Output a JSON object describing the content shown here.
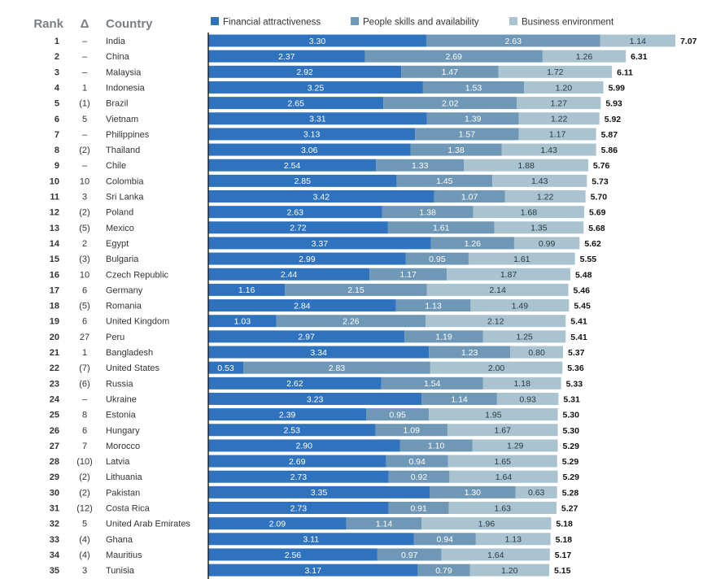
{
  "header": {
    "rank": "Rank",
    "delta": "Δ",
    "country": "Country"
  },
  "colors": {
    "financial": "#2f73bf",
    "people": "#6f97b6",
    "business": "#a9c3d1",
    "axis": "#222222",
    "header_text": "#7a7f86"
  },
  "chart_data": {
    "type": "bar",
    "orientation": "horizontal",
    "stacked": true,
    "legend_position": "top",
    "grid": false,
    "series": [
      {
        "name": "Financial attractiveness",
        "values": [
          3.3,
          2.37,
          2.92,
          3.25,
          2.65,
          3.31,
          3.13,
          3.06,
          2.54,
          2.85,
          3.42,
          2.63,
          2.72,
          3.37,
          2.99,
          2.44,
          1.16,
          2.84,
          1.03,
          2.97,
          3.34,
          0.53,
          2.62,
          3.23,
          2.39,
          2.53,
          2.9,
          2.69,
          2.73,
          3.35,
          2.73,
          2.09,
          3.11,
          2.56,
          3.17
        ]
      },
      {
        "name": "People skills and availability",
        "values": [
          2.63,
          2.69,
          1.47,
          1.53,
          2.02,
          1.39,
          1.57,
          1.38,
          1.33,
          1.45,
          1.07,
          1.38,
          1.61,
          1.26,
          0.95,
          1.17,
          2.15,
          1.13,
          2.26,
          1.19,
          1.23,
          2.83,
          1.54,
          1.14,
          0.95,
          1.09,
          1.1,
          0.94,
          0.92,
          1.3,
          0.91,
          1.14,
          0.94,
          0.97,
          0.79
        ]
      },
      {
        "name": "Business environment",
        "values": [
          1.14,
          1.26,
          1.72,
          1.2,
          1.27,
          1.22,
          1.17,
          1.43,
          1.88,
          1.43,
          1.22,
          1.68,
          1.35,
          0.99,
          1.61,
          1.87,
          2.14,
          1.49,
          2.12,
          1.25,
          0.8,
          2.0,
          1.18,
          0.93,
          1.95,
          1.67,
          1.29,
          1.65,
          1.64,
          0.63,
          1.63,
          1.96,
          1.13,
          1.64,
          1.2
        ]
      }
    ],
    "rows": [
      {
        "rank": "1",
        "delta": "–",
        "country": "India",
        "total": "7.07"
      },
      {
        "rank": "2",
        "delta": "–",
        "country": "China",
        "total": "6.31"
      },
      {
        "rank": "3",
        "delta": "–",
        "country": "Malaysia",
        "total": "6.11"
      },
      {
        "rank": "4",
        "delta": "1",
        "country": "Indonesia",
        "total": "5.99"
      },
      {
        "rank": "5",
        "delta": "(1)",
        "country": "Brazil",
        "total": "5.93"
      },
      {
        "rank": "6",
        "delta": "5",
        "country": "Vietnam",
        "total": "5.92"
      },
      {
        "rank": "7",
        "delta": "–",
        "country": "Philippines",
        "total": "5.87"
      },
      {
        "rank": "8",
        "delta": "(2)",
        "country": "Thailand",
        "total": "5.86"
      },
      {
        "rank": "9",
        "delta": "–",
        "country": "Chile",
        "total": "5.76"
      },
      {
        "rank": "10",
        "delta": "10",
        "country": "Colombia",
        "total": "5.73"
      },
      {
        "rank": "11",
        "delta": "3",
        "country": "Sri Lanka",
        "total": "5.70"
      },
      {
        "rank": "12",
        "delta": "(2)",
        "country": "Poland",
        "total": "5.69"
      },
      {
        "rank": "13",
        "delta": "(5)",
        "country": "Mexico",
        "total": "5.68"
      },
      {
        "rank": "14",
        "delta": "2",
        "country": "Egypt",
        "total": "5.62"
      },
      {
        "rank": "15",
        "delta": "(3)",
        "country": "Bulgaria",
        "total": "5.55"
      },
      {
        "rank": "16",
        "delta": "10",
        "country": "Czech Republic",
        "total": "5.48"
      },
      {
        "rank": "17",
        "delta": "6",
        "country": "Germany",
        "total": "5.46"
      },
      {
        "rank": "18",
        "delta": "(5)",
        "country": "Romania",
        "total": "5.45"
      },
      {
        "rank": "19",
        "delta": "6",
        "country": "United Kingdom",
        "total": "5.41"
      },
      {
        "rank": "20",
        "delta": "27",
        "country": "Peru",
        "total": "5.41"
      },
      {
        "rank": "21",
        "delta": "1",
        "country": "Bangladesh",
        "total": "5.37"
      },
      {
        "rank": "22",
        "delta": "(7)",
        "country": "United States",
        "total": "5.36"
      },
      {
        "rank": "23",
        "delta": "(6)",
        "country": "Russia",
        "total": "5.33"
      },
      {
        "rank": "24",
        "delta": "–",
        "country": "Ukraine",
        "total": "5.31"
      },
      {
        "rank": "25",
        "delta": "8",
        "country": "Estonia",
        "total": "5.30"
      },
      {
        "rank": "26",
        "delta": "6",
        "country": "Hungary",
        "total": "5.30"
      },
      {
        "rank": "27",
        "delta": "7",
        "country": "Morocco",
        "total": "5.29"
      },
      {
        "rank": "28",
        "delta": "(10)",
        "country": "Latvia",
        "total": "5.29"
      },
      {
        "rank": "29",
        "delta": "(2)",
        "country": "Lithuania",
        "total": "5.29"
      },
      {
        "rank": "30",
        "delta": "(2)",
        "country": "Pakistan",
        "total": "5.28"
      },
      {
        "rank": "31",
        "delta": "(12)",
        "country": "Costa Rica",
        "total": "5.27"
      },
      {
        "rank": "32",
        "delta": "5",
        "country": "United Arab Emirates",
        "total": "5.18"
      },
      {
        "rank": "33",
        "delta": "(4)",
        "country": "Ghana",
        "total": "5.18"
      },
      {
        "rank": "34",
        "delta": "(4)",
        "country": "Mauritius",
        "total": "5.17"
      },
      {
        "rank": "35",
        "delta": "3",
        "country": "Tunisia",
        "total": "5.15"
      }
    ]
  }
}
